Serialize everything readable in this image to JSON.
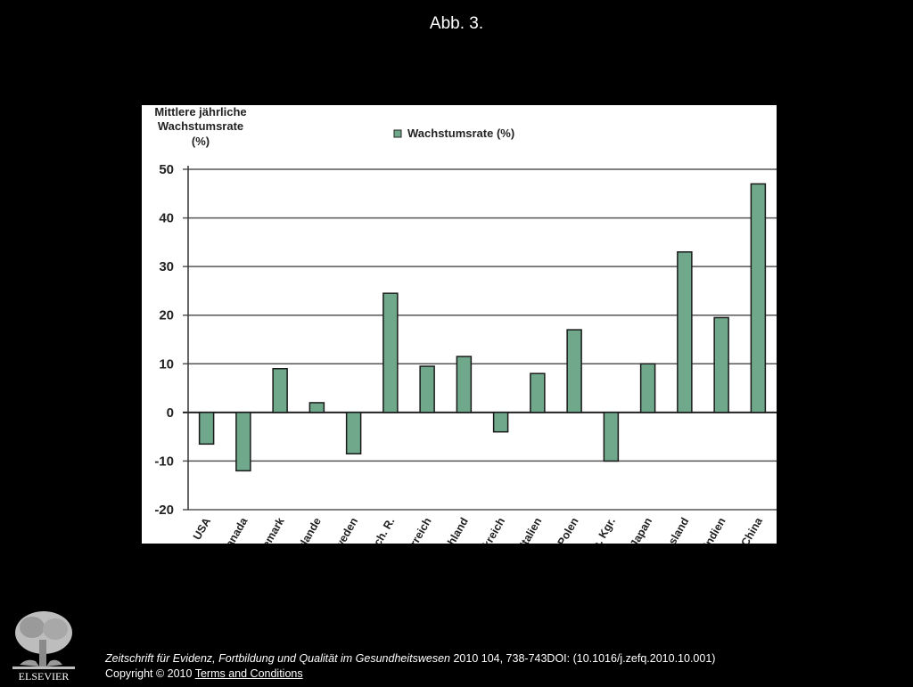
{
  "slide": {
    "title": "Abb. 3."
  },
  "chart_data": {
    "type": "bar",
    "ylabel_lines": [
      "Mittlere jährliche",
      "Wachstumsrate",
      "(%)"
    ],
    "legend": {
      "label": "Wachstumsrate (%)",
      "placement": "top"
    },
    "categories": [
      "USA",
      "Kanada",
      "Dänemark",
      "Niederlande",
      "Schweden",
      "Tschech. R.",
      "Österreich",
      "Deutschland",
      "Frankreich",
      "Italien",
      "Polen",
      "Verein. Kgr.",
      "Japan",
      "Russland",
      "Indien",
      "China"
    ],
    "series": [
      {
        "name": "Wachstumsrate (%)",
        "values": [
          -6.5,
          -12,
          9,
          2,
          -8.5,
          24.5,
          9.5,
          11.5,
          -4,
          8,
          17,
          -10,
          10,
          33,
          19.5,
          47
        ],
        "color": "#6fa88a"
      }
    ],
    "ylim": [
      -20,
      50
    ],
    "yticks": [
      "50",
      "40",
      "30",
      "20",
      "10",
      "0",
      "-10",
      "-20"
    ],
    "ytick_values": [
      50,
      40,
      30,
      20,
      10,
      0,
      -10,
      -20
    ],
    "grid": true
  },
  "citation": {
    "journal": "Zeitschrift für Evidenz, Fortbildung und Qualität im Gesundheitswesen",
    "details": " 2010 104, 738-743DOI: (10.1016/j.zefq.2010.10.001)",
    "copyright": "Copyright © 2010 ",
    "terms_link": " Terms and Conditions"
  },
  "logo": {
    "name": "ELSEVIER"
  }
}
